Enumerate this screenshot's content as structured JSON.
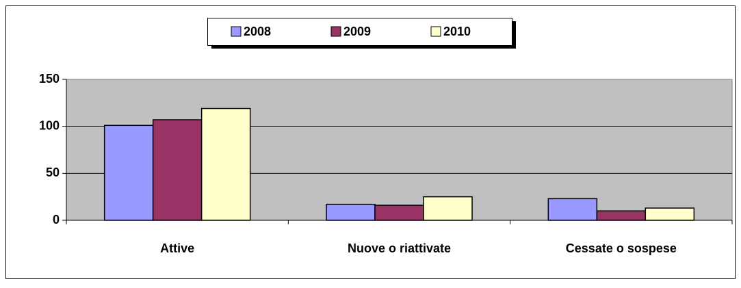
{
  "chart_data": {
    "type": "bar",
    "categories": [
      "Attive",
      "Nuove o riattivate",
      "Cessate o sospese"
    ],
    "series": [
      {
        "name": "2008",
        "color": "#9999ff",
        "values": [
          101,
          17,
          23
        ]
      },
      {
        "name": "2009",
        "color": "#993366",
        "values": [
          107,
          16,
          10
        ]
      },
      {
        "name": "2010",
        "color": "#ffffcc",
        "values": [
          119,
          25,
          13
        ]
      }
    ],
    "ylim": [
      0,
      150
    ],
    "yticks": [
      0,
      50,
      100,
      150
    ],
    "grid": true,
    "plot_background": "#c0c0c0",
    "legend": "top"
  }
}
